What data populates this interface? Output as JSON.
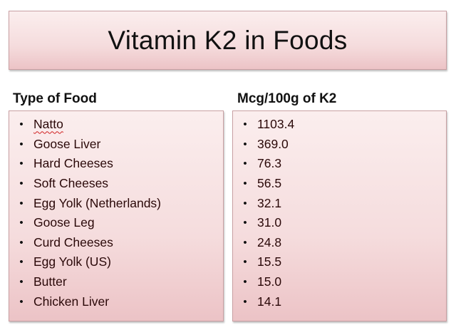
{
  "slide": {
    "title": "Vitamin K2 in Foods",
    "left_column": {
      "header": "Type of Food",
      "items": [
        "Natto",
        "Goose Liver",
        "Hard Cheeses",
        "Soft Cheeses",
        "Egg Yolk (Netherlands)",
        "Goose Leg",
        "Curd Cheeses",
        "Egg Yolk (US)",
        "Butter",
        "Chicken Liver"
      ]
    },
    "right_column": {
      "header": "Mcg/100g of K2",
      "items": [
        "1103.4",
        "369.0",
        "76.3",
        "56.5",
        "32.1",
        "31.0",
        "24.8",
        "15.5",
        "15.0",
        "14.1"
      ]
    },
    "bullet": "•",
    "colors": {
      "box_top": "#fbeeee",
      "box_bottom": "#ecc3c6",
      "border": "#c9a0a3",
      "spellcheck": "#d02020"
    }
  }
}
